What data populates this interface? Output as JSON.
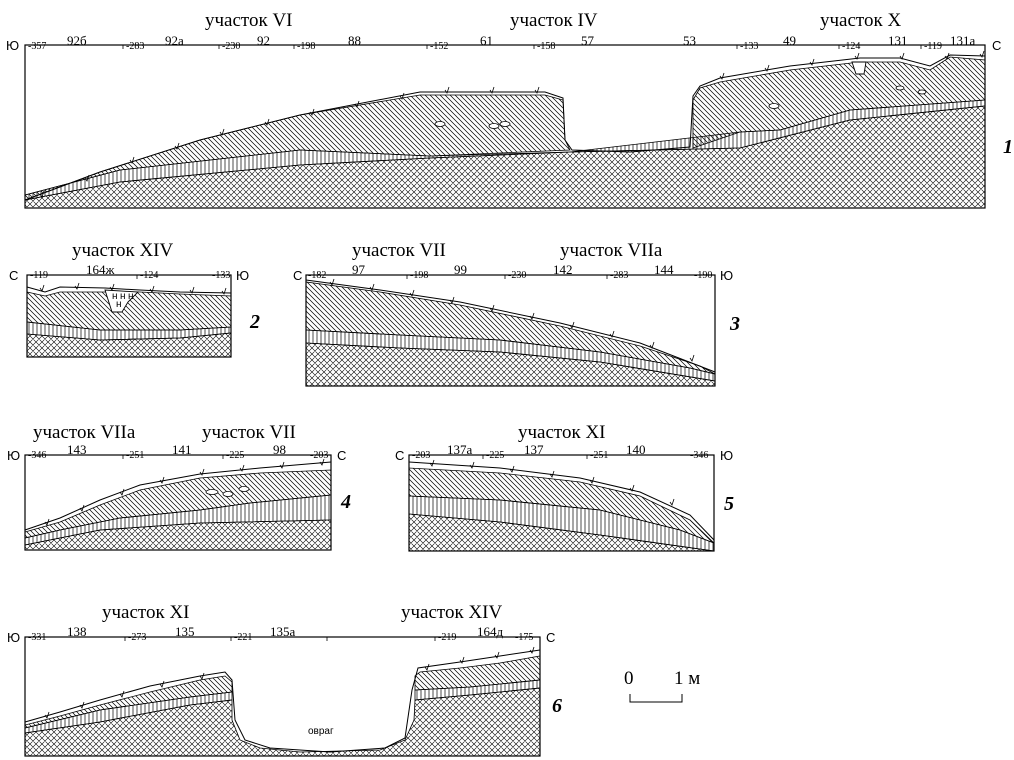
{
  "profiles": [
    {
      "number": "1",
      "dir_left": "Ю",
      "dir_right": "С",
      "sites": [
        "участок VI",
        "участок IV",
        "участок X"
      ],
      "squares": [
        "92б",
        "92а",
        "92",
        "88",
        "61",
        "57",
        "53",
        "49",
        "131",
        "131а"
      ],
      "elevations": [
        "-357",
        "-283",
        "-230",
        "-198",
        "-152",
        "-158",
        "-133",
        "-124",
        "-119"
      ]
    },
    {
      "number": "2",
      "dir_left": "С",
      "dir_right": "Ю",
      "sites": [
        "участок XIV"
      ],
      "squares": [
        "164ж"
      ],
      "elevations": [
        "-119",
        "-124",
        "-133"
      ]
    },
    {
      "number": "3",
      "dir_left": "С",
      "dir_right": "Ю",
      "sites": [
        "участок VII",
        "участок VIIа"
      ],
      "squares": [
        "97",
        "99",
        "142",
        "144"
      ],
      "elevations": [
        "-182",
        "-198",
        "-230",
        "-283",
        "-190"
      ]
    },
    {
      "number": "4",
      "dir_left": "Ю",
      "dir_right": "С",
      "sites": [
        "участок VIIа",
        "участок VII"
      ],
      "squares": [
        "143",
        "141",
        "98"
      ],
      "elevations": [
        "-346",
        "-251",
        "-225",
        "-203"
      ]
    },
    {
      "number": "5",
      "dir_left": "С",
      "dir_right": "Ю",
      "sites": [
        "участок XI"
      ],
      "squares": [
        "137а",
        "137",
        "140"
      ],
      "elevations": [
        "-203",
        "-225",
        "-251",
        "-346"
      ]
    },
    {
      "number": "6",
      "dir_left": "Ю",
      "dir_right": "С",
      "sites": [
        "участок XI",
        "участок XIV"
      ],
      "squares": [
        "138",
        "135",
        "135а",
        "164д"
      ],
      "elevations": [
        "-331",
        "-273",
        "-221",
        "-219",
        "-175"
      ],
      "ravine_label": "овраг"
    }
  ],
  "pit_marks": [
    "н",
    "н",
    "н",
    "н"
  ],
  "scale": {
    "zero": "0",
    "one": "1 м"
  }
}
